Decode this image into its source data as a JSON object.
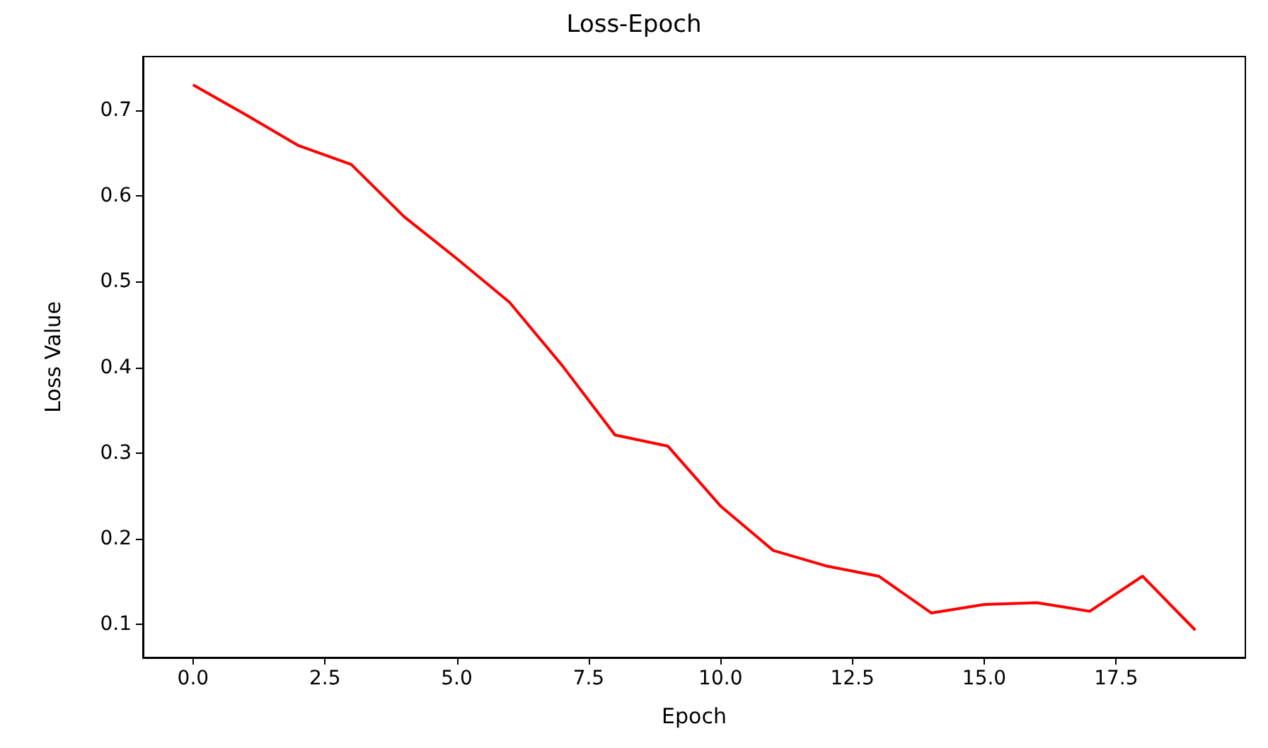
{
  "chart_data": {
    "type": "line",
    "title": "Loss-Epoch",
    "xlabel": "Epoch",
    "ylabel": "Loss Value",
    "x": [
      0,
      1,
      2,
      3,
      4,
      5,
      6,
      7,
      8,
      9,
      10,
      11,
      12,
      13,
      14,
      15,
      16,
      17,
      18,
      19
    ],
    "series": [
      {
        "color": "#ff0000",
        "values": [
          0.73,
          0.695,
          0.659,
          0.637,
          0.576,
          0.527,
          0.476,
          0.402,
          0.321,
          0.308,
          0.238,
          0.186,
          0.168,
          0.156,
          0.113,
          0.123,
          0.125,
          0.115,
          0.156,
          0.093
        ]
      }
    ],
    "xlim": [
      -0.95,
      19.95
    ],
    "ylim": [
      0.061,
      0.763
    ],
    "xticks": [
      {
        "value": 0,
        "label": "0.0"
      },
      {
        "value": 2.5,
        "label": "2.5"
      },
      {
        "value": 5,
        "label": "5.0"
      },
      {
        "value": 7.5,
        "label": "7.5"
      },
      {
        "value": 10,
        "label": "10.0"
      },
      {
        "value": 12.5,
        "label": "12.5"
      },
      {
        "value": 15,
        "label": "15.0"
      },
      {
        "value": 17.5,
        "label": "17.5"
      }
    ],
    "yticks": [
      0.1,
      0.2,
      0.3,
      0.4,
      0.5,
      0.6,
      0.7
    ],
    "grid": false,
    "marker": "none",
    "line_style": "solid"
  }
}
